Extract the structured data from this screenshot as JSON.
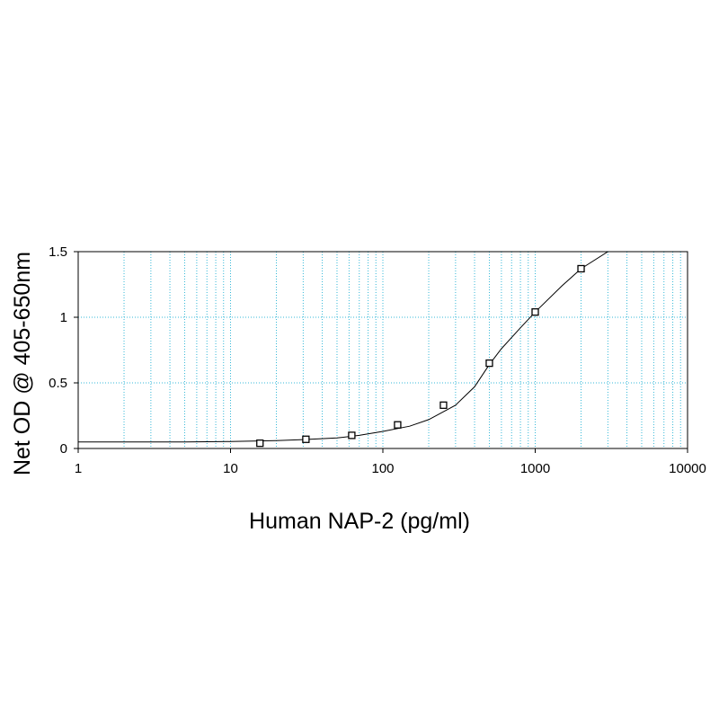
{
  "chart_data": {
    "type": "scatter",
    "title": "",
    "xlabel": "Human NAP-2 (pg/ml)",
    "ylabel": "Net OD @ 405-650nm",
    "x_scale": "log",
    "xlim": [
      1,
      10000
    ],
    "ylim": [
      0,
      1.5
    ],
    "x_ticks": [
      "1",
      "10",
      "100",
      "1000",
      "10000"
    ],
    "y_ticks": [
      "0",
      "0.5",
      "1",
      "1.5"
    ],
    "grid": true,
    "legend": "none",
    "series": [
      {
        "marker": "open-square",
        "x": [
          15.6,
          31.25,
          62.5,
          125,
          250,
          500,
          1000,
          2000
        ],
        "y": [
          0.04,
          0.07,
          0.1,
          0.18,
          0.33,
          0.65,
          1.04,
          1.37
        ]
      }
    ],
    "fit_curve": {
      "type": "4-parameter logistic",
      "x": [
        1,
        5,
        10,
        20,
        30,
        50,
        70,
        100,
        150,
        200,
        300,
        400,
        500,
        600,
        800,
        1000,
        1500,
        2000,
        3000
      ],
      "y": [
        0.05,
        0.05,
        0.053,
        0.06,
        0.068,
        0.08,
        0.1,
        0.13,
        0.17,
        0.22,
        0.33,
        0.47,
        0.64,
        0.76,
        0.92,
        1.04,
        1.24,
        1.37,
        1.5
      ]
    }
  },
  "colors": {
    "grid": "#35b8d8",
    "axis": "#000000",
    "curve": "#000000",
    "marker": "#000000"
  }
}
